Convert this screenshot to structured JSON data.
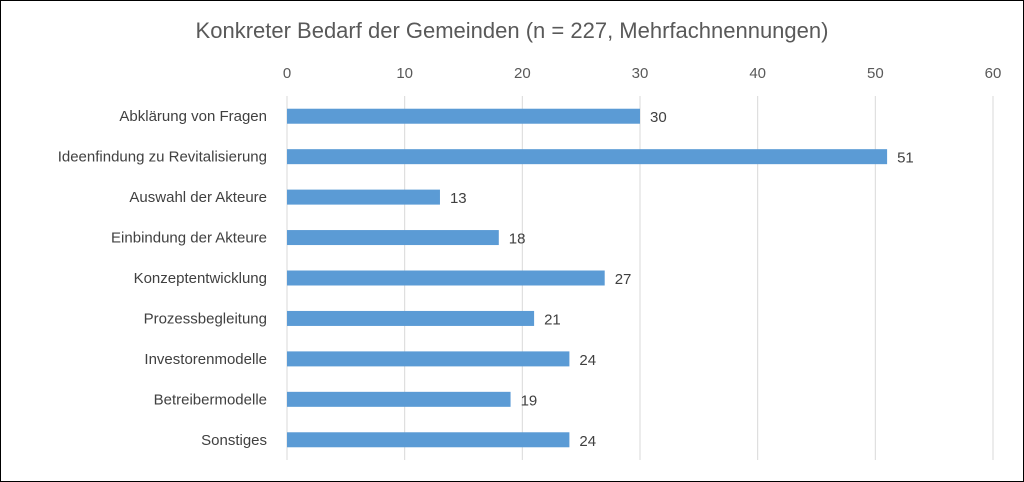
{
  "chart_data": {
    "type": "bar",
    "orientation": "horizontal",
    "title": "Konkreter Bedarf der Gemeinden (n = 227, Mehrfachnennungen)",
    "categories": [
      "Abklärung von Fragen",
      "Ideenfindung zu Revitalisierung",
      "Auswahl der Akteure",
      "Einbindung der Akteure",
      "Konzeptentwicklung",
      "Prozessbegleitung",
      "Investorenmodelle",
      "Betreibermodelle",
      "Sonstiges"
    ],
    "values": [
      30,
      51,
      13,
      18,
      27,
      21,
      24,
      19,
      24
    ],
    "xlim": [
      0,
      60
    ],
    "xticks": [
      "0",
      "10",
      "20",
      "30",
      "40",
      "50",
      "60"
    ],
    "xaxis_position": "top",
    "grid": true,
    "legend": "none",
    "bar_color": "#5b9bd5",
    "grid_color": "#d9d9d9"
  }
}
